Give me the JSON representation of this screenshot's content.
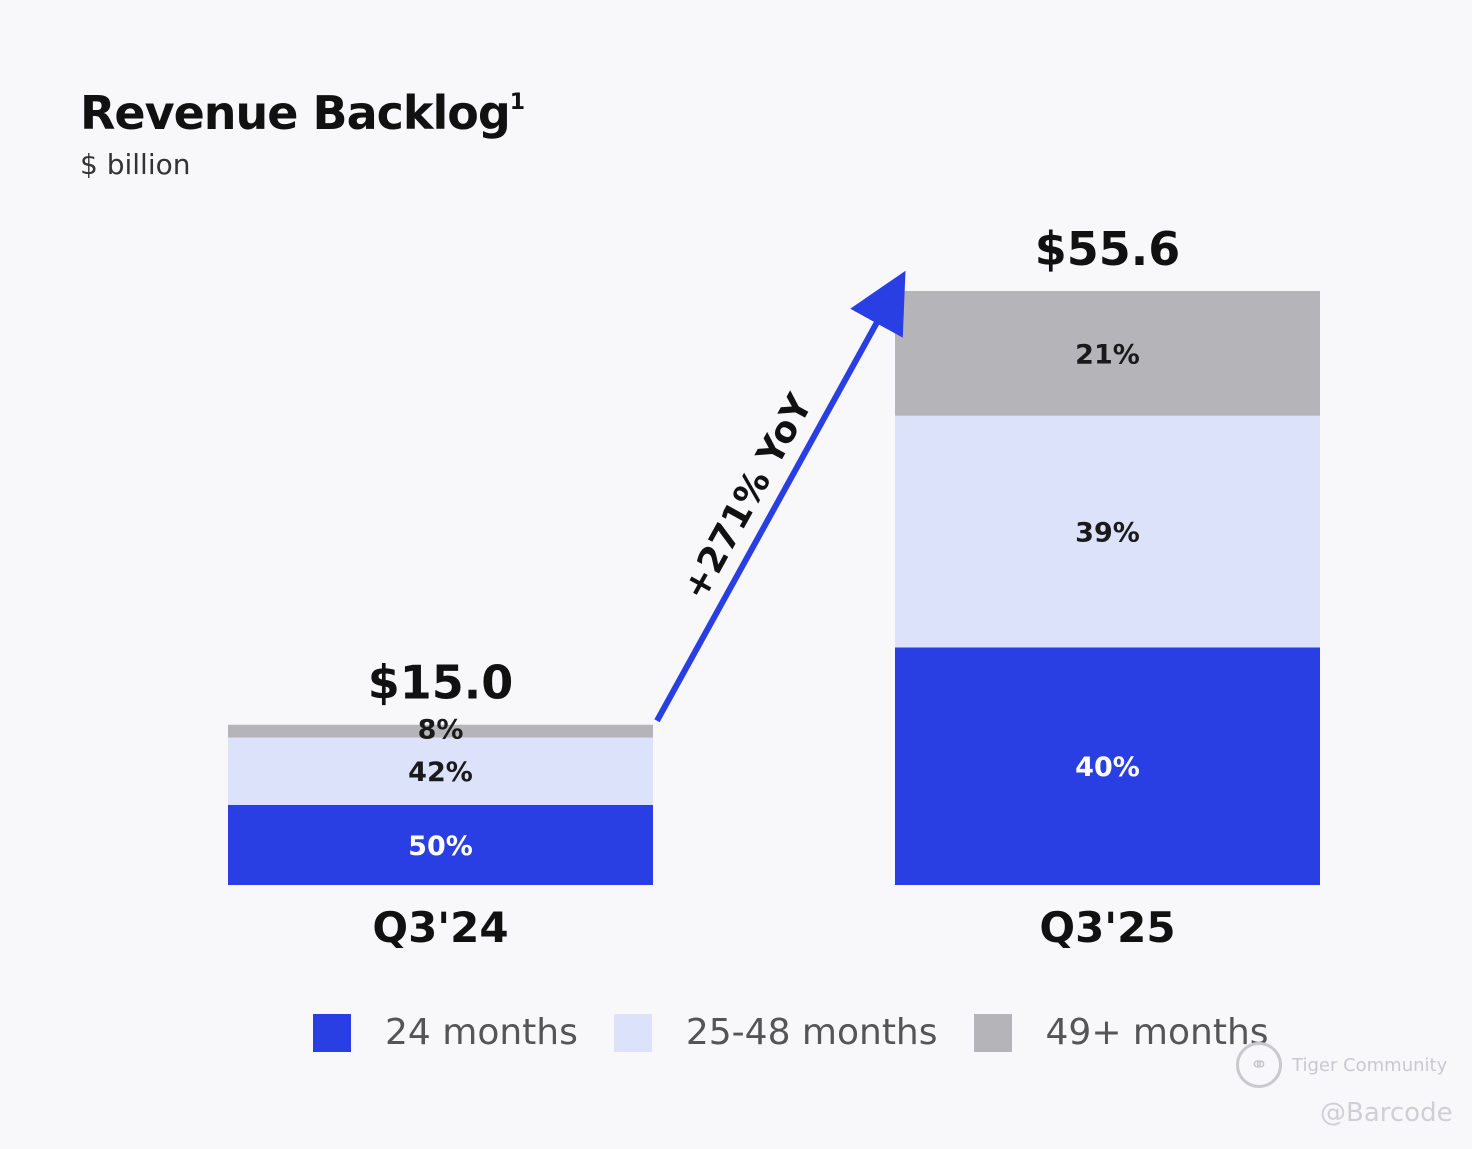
{
  "title": {
    "text": "Revenue Backlog",
    "footnote_mark": "1",
    "unit": "$ billion"
  },
  "colors": {
    "short_term": "#2a3fe3",
    "mid_term": "#dde2fb",
    "long_term": "#b5b5b9",
    "arrow": "#2a3fe3"
  },
  "chart_data": {
    "type": "bar",
    "stacked": true,
    "title": "Revenue Backlog",
    "ylabel": "$ billion",
    "categories": [
      "Q3'24",
      "Q3'25"
    ],
    "totals": [
      15.0,
      55.6
    ],
    "total_labels": [
      "$15.0",
      "$55.6"
    ],
    "ylim": [
      0,
      55.6
    ],
    "series": [
      {
        "name": "24 months",
        "percent": [
          50,
          40
        ],
        "labels": [
          "50%",
          "40%"
        ]
      },
      {
        "name": "25-48 months",
        "percent": [
          42,
          39
        ],
        "labels": [
          "42%",
          "39%"
        ]
      },
      {
        "name": "49+ months",
        "percent": [
          8,
          21
        ],
        "labels": [
          "8%",
          "21%"
        ]
      }
    ],
    "annotation": "+271% YoY"
  },
  "legend": {
    "items": [
      {
        "label": "24 months",
        "icon": "blue-square"
      },
      {
        "label": "25-48 months",
        "icon": "light-blue-square"
      },
      {
        "label": "49+ months",
        "icon": "gray-square"
      }
    ]
  },
  "watermark": {
    "brand": "Tiger Community",
    "handle": "@Barcode"
  }
}
